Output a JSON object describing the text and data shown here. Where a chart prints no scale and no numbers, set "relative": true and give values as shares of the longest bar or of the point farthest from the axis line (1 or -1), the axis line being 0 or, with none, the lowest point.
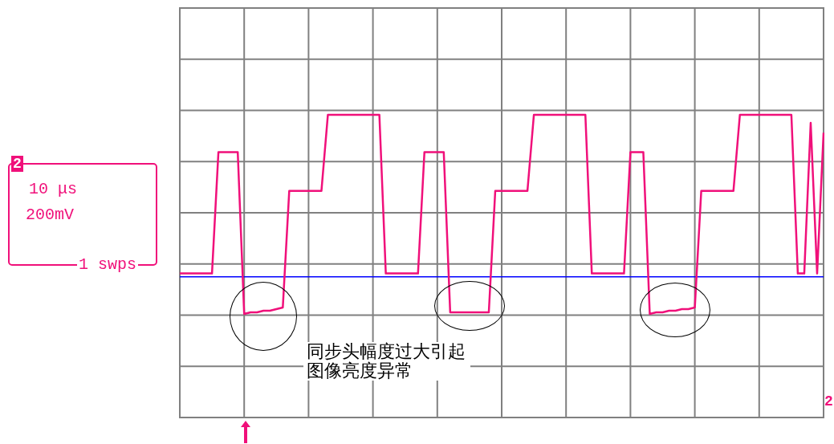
{
  "chart_data": {
    "type": "line",
    "relative": true,
    "grid": true,
    "legend": false,
    "marker": "none",
    "line_style": "solid",
    "categories": [
      null,
      null,
      null,
      null,
      null,
      null,
      null,
      null,
      null,
      null,
      null,
      null,
      null,
      null,
      null,
      null,
      null,
      null,
      null,
      null,
      null,
      null,
      null,
      null,
      null,
      null,
      null,
      null,
      null,
      null,
      null,
      null,
      null,
      null,
      null,
      null,
      null,
      null,
      null,
      null,
      null,
      null,
      null,
      null,
      null,
      null,
      null,
      null,
      null,
      null,
      null,
      null,
      null,
      null,
      null,
      null,
      null,
      null,
      null,
      null,
      null,
      null,
      null,
      null,
      null,
      null,
      null,
      null,
      null,
      null,
      null,
      null,
      null,
      null,
      null,
      null,
      null,
      null,
      null,
      null,
      null,
      null,
      null,
      null,
      null,
      null,
      null,
      null,
      null,
      null,
      null,
      null,
      null,
      null,
      null,
      null,
      null,
      null,
      null,
      null,
      null
    ],
    "series": [
      {
        "color": "#f0107a",
        "values": [
          0.02,
          0.02,
          0.02,
          0.02,
          0.02,
          0.02,
          0.77,
          0.77,
          0.77,
          0.77,
          -0.23,
          -0.22,
          -0.22,
          -0.21,
          -0.21,
          -0.2,
          -0.19,
          0.53,
          0.53,
          0.53,
          0.53,
          0.53,
          0.53,
          1,
          1,
          1,
          1,
          1,
          1,
          1,
          1,
          1,
          0.02,
          0.02,
          0.02,
          0.02,
          0.02,
          0.02,
          0.77,
          0.77,
          0.77,
          0.77,
          -0.22,
          -0.22,
          -0.22,
          -0.22,
          -0.22,
          -0.22,
          -0.22,
          0.53,
          0.53,
          0.53,
          0.53,
          0.53,
          0.53,
          1,
          1,
          1,
          1,
          1,
          1,
          1,
          1,
          1,
          0.02,
          0.02,
          0.02,
          0.02,
          0.02,
          0.02,
          0.77,
          0.77,
          0.77,
          -0.23,
          -0.22,
          -0.22,
          -0.21,
          -0.21,
          -0.2,
          -0.2,
          -0.19,
          0.53,
          0.53,
          0.53,
          0.53,
          0.53,
          0.53,
          1,
          1,
          1,
          1,
          1,
          1,
          1,
          1,
          1,
          0.02,
          0.02,
          0.95,
          0.02,
          0.89
        ]
      }
    ],
    "ref_lines": [
      {
        "axis": "y",
        "value": 0,
        "color": "#0000ff"
      }
    ],
    "annotations": [
      "2",
      "10 μs",
      "200mV",
      "1 swps",
      "2",
      "同步头幅度过大引起图像亮度异常"
    ]
  }
}
